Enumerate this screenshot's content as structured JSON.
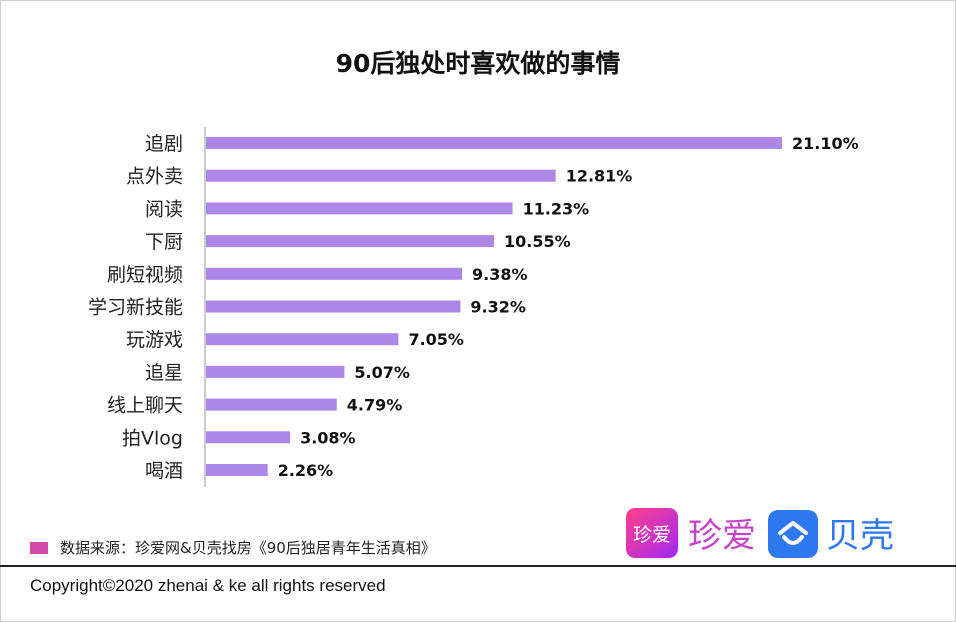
{
  "chart_data": {
    "type": "bar",
    "orientation": "horizontal",
    "title": "90后独处时喜欢做的事情",
    "categories": [
      "追剧",
      "点外卖",
      "阅读",
      "下厨",
      "刷短视频",
      "学习新技能",
      "玩游戏",
      "追星",
      "线上聊天",
      "拍Vlog",
      "喝酒"
    ],
    "values": [
      21.1,
      12.81,
      11.23,
      10.55,
      9.38,
      9.32,
      7.05,
      5.07,
      4.79,
      3.08,
      2.26
    ],
    "data_labels": [
      "21.10%",
      "12.81%",
      "11.23%",
      "10.55%",
      "9.38%",
      "9.32%",
      "7.05%",
      "5.07%",
      "4.79%",
      "3.08%",
      "2.26%"
    ],
    "unit": "%",
    "bar_color": "#ad87e8",
    "grid": false,
    "xlabel": "",
    "ylabel": ""
  },
  "legend": {
    "text": "数据来源：珍爱网&贝壳找房《90后独居青年生活真相》",
    "color": "#d04aa8"
  },
  "logos": {
    "zhenai_icon": "珍爱",
    "zhenai_text": "珍爱",
    "ke_text": "贝壳",
    "ke_icon": "house-icon"
  },
  "footer": {
    "copyright": "Copyright©2020 zhenai & ke all rights reserved"
  }
}
